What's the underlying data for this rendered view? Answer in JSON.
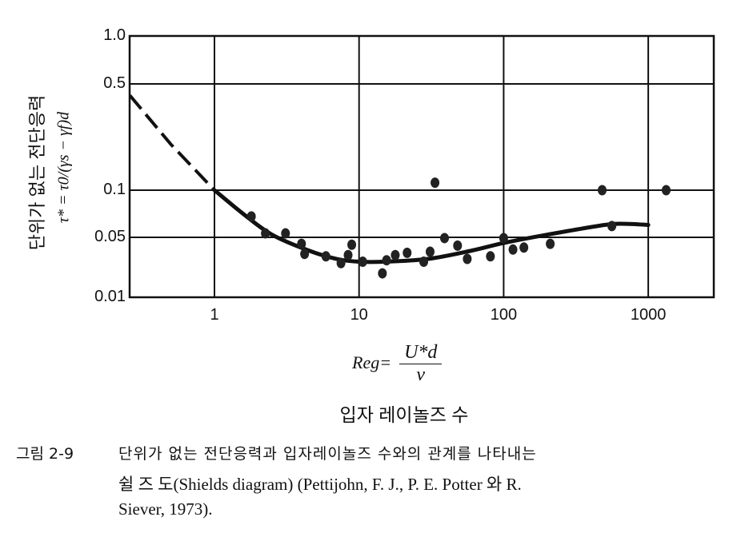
{
  "chart_data": {
    "type": "scatter",
    "title": "",
    "xscale": "log",
    "yscale": "log",
    "xlim": [
      0.26,
      2800
    ],
    "ylim": [
      0.01,
      1.0
    ],
    "grid": true,
    "x_ticks": [
      {
        "value": 1,
        "label": "1"
      },
      {
        "value": 10,
        "label": "10"
      },
      {
        "value": 100,
        "label": "100"
      },
      {
        "value": 1000,
        "label": "1000"
      }
    ],
    "y_ticks": [
      {
        "value": 1.0,
        "label": "1.0"
      },
      {
        "value": 0.5,
        "label": "0.5"
      },
      {
        "value": 0.1,
        "label": "0.1"
      },
      {
        "value": 0.05,
        "label": "0.05"
      },
      {
        "value": 0.01,
        "label": "0.01"
      }
    ],
    "ylabel_korean": "단위가 없는 전단응력",
    "ylabel_formula": "τ* = τ0/(γs − γf)d",
    "xlabel_formula": {
      "lhs": "Reg=",
      "numerator": "U*d",
      "denominator": "v"
    },
    "xlabel_korean": "입자 레이놀즈 수",
    "points": [
      [
        1.8,
        0.068
      ],
      [
        2.25,
        0.053
      ],
      [
        3.1,
        0.053
      ],
      [
        4.0,
        0.042
      ],
      [
        4.2,
        0.032
      ],
      [
        5.9,
        0.03
      ],
      [
        7.5,
        0.025
      ],
      [
        8.4,
        0.031
      ],
      [
        8.9,
        0.041
      ],
      [
        10.6,
        0.026
      ],
      [
        14.5,
        0.019
      ],
      [
        15.5,
        0.027
      ],
      [
        17.8,
        0.031
      ],
      [
        21.5,
        0.033
      ],
      [
        28,
        0.026
      ],
      [
        31,
        0.034
      ],
      [
        33.5,
        0.112
      ],
      [
        39,
        0.049
      ],
      [
        48,
        0.04
      ],
      [
        56,
        0.028
      ],
      [
        81,
        0.03
      ],
      [
        100,
        0.049
      ],
      [
        116,
        0.036
      ],
      [
        138,
        0.038
      ],
      [
        210,
        0.042
      ],
      [
        480,
        0.1
      ],
      [
        560,
        0.059
      ],
      [
        1330,
        0.1
      ]
    ],
    "curve_dashed": [
      [
        0.26,
        0.42
      ],
      [
        0.5,
        0.2
      ],
      [
        1,
        0.1
      ]
    ],
    "curve_solid": [
      [
        1,
        0.1
      ],
      [
        1.6,
        0.07
      ],
      [
        2.5,
        0.052
      ],
      [
        4.5,
        0.035
      ],
      [
        7,
        0.028
      ],
      [
        10,
        0.026
      ],
      [
        15,
        0.026
      ],
      [
        30,
        0.028
      ],
      [
        60,
        0.035
      ],
      [
        100,
        0.043
      ],
      [
        200,
        0.052
      ],
      [
        500,
        0.06
      ],
      [
        700,
        0.061
      ],
      [
        1000,
        0.06
      ]
    ]
  },
  "caption": {
    "figure_label": "그림 2-9",
    "line1": "단위가 없는 전단응력과 입자레이놀즈 수와의 관계를 나타내는",
    "line2": "쉴 즈 도(Shields diagram) (Pettijohn, F. J., P. E. Potter 와   R.",
    "line3": "Siever, 1973)."
  }
}
